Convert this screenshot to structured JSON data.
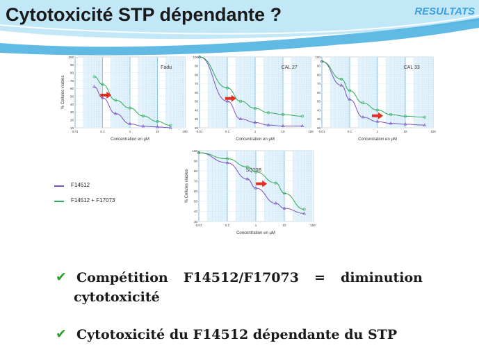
{
  "header": {
    "title": "Cytotoxicité STP dépendante ?",
    "section": "RESULTATS",
    "colors": {
      "band1": "#7fd0ef",
      "band2": "#3aa9dc",
      "section_text": "#3aa0e0"
    }
  },
  "legend": {
    "items": [
      {
        "label": "F14512",
        "color": "#7a4fc0"
      },
      {
        "label": "F14512 + F17073",
        "color": "#2faa55"
      }
    ]
  },
  "charts": [
    {
      "label": "Fadu",
      "ylabel": "% Cellules viables",
      "xlabel": "Concentration en µM",
      "xticks": [
        "0.01",
        "0.1",
        "1",
        "10",
        "100"
      ],
      "yticks": [
        "10",
        "20",
        "30",
        "40",
        "50",
        "60",
        "70",
        "80",
        "90",
        "100"
      ]
    },
    {
      "label": "CAL 27",
      "ylabel": "",
      "xlabel": "Concentration en µM",
      "xticks": [
        "0.01",
        "0.1",
        "1",
        "10",
        "100"
      ],
      "yticks": [
        "20",
        "30",
        "40",
        "50",
        "60",
        "70",
        "80",
        "90",
        "100"
      ]
    },
    {
      "label": "CAL 33",
      "ylabel": "",
      "xlabel": "Concentration en µM",
      "xticks": [
        "0.01",
        "0.1",
        "1",
        "10",
        "100"
      ],
      "yticks": [
        "20",
        "30",
        "40",
        "50",
        "60",
        "70",
        "80",
        "90",
        "100"
      ]
    },
    {
      "label": "SQ20B",
      "ylabel": "% Cellules viables",
      "xlabel": "Concentration en µM",
      "xticks": [
        "0.01",
        "0.1",
        "1",
        "10",
        "100"
      ],
      "yticks": [
        "30",
        "40",
        "50",
        "60",
        "70",
        "80",
        "90",
        "100"
      ]
    }
  ],
  "bullets": [
    {
      "check": "✔",
      "line1": "Compétition F14512/F17073 = diminution",
      "line2": "cytotoxicité"
    },
    {
      "check": "✔",
      "text": "Cytotoxicité du F14512 dépendante du STP"
    }
  ],
  "chart_data": [
    {
      "type": "line",
      "title": "Fadu",
      "xlabel": "Concentration en µM",
      "ylabel": "% Cellules viables",
      "xscale": "log",
      "xlim": [
        0.01,
        100
      ],
      "ylim": [
        10,
        100
      ],
      "grid": true,
      "series": [
        {
          "name": "F14512",
          "color": "#7a4fc0",
          "x": [
            0.05,
            0.1,
            0.3,
            1,
            3,
            10,
            30
          ],
          "y": [
            62,
            48,
            28,
            15,
            12,
            11,
            10
          ]
        },
        {
          "name": "F14512 + F17073",
          "color": "#2faa55",
          "x": [
            0.05,
            0.1,
            0.3,
            1,
            3,
            10,
            30
          ],
          "y": [
            75,
            65,
            45,
            35,
            25,
            18,
            13
          ]
        }
      ]
    },
    {
      "type": "line",
      "title": "CAL 27",
      "xlabel": "Concentration en µM",
      "ylabel": "",
      "xscale": "log",
      "xlim": [
        0.01,
        100
      ],
      "ylim": [
        20,
        100
      ],
      "grid": true,
      "series": [
        {
          "name": "F14512",
          "color": "#7a4fc0",
          "x": [
            0.01,
            0.1,
            0.3,
            1,
            3,
            10,
            50
          ],
          "y": [
            100,
            50,
            30,
            26,
            23,
            22,
            22
          ]
        },
        {
          "name": "F14512 + F17073",
          "color": "#2faa55",
          "x": [
            0.01,
            0.1,
            0.3,
            1,
            3,
            10,
            50
          ],
          "y": [
            100,
            65,
            50,
            42,
            37,
            35,
            33
          ]
        }
      ]
    },
    {
      "type": "line",
      "title": "CAL 33",
      "xlabel": "Concentration en µM",
      "ylabel": "",
      "xscale": "log",
      "xlim": [
        0.01,
        100
      ],
      "ylim": [
        20,
        100
      ],
      "grid": true,
      "series": [
        {
          "name": "F14512",
          "color": "#7a4fc0",
          "x": [
            0.01,
            0.05,
            0.1,
            0.3,
            1,
            3,
            10,
            50
          ],
          "y": [
            95,
            68,
            52,
            32,
            27,
            25,
            24,
            23
          ]
        },
        {
          "name": "F14512 + F17073",
          "color": "#2faa55",
          "x": [
            0.01,
            0.05,
            0.1,
            0.3,
            1,
            3,
            10,
            50
          ],
          "y": [
            95,
            75,
            62,
            48,
            40,
            35,
            33,
            32
          ]
        }
      ]
    },
    {
      "type": "line",
      "title": "SQ20B",
      "xlabel": "Concentration en µM",
      "ylabel": "% Cellules viables",
      "xscale": "log",
      "xlim": [
        0.01,
        100
      ],
      "ylim": [
        30,
        100
      ],
      "grid": true,
      "series": [
        {
          "name": "F14512",
          "color": "#7a4fc0",
          "x": [
            0.01,
            0.1,
            0.5,
            1,
            5,
            10,
            50
          ],
          "y": [
            98,
            88,
            72,
            63,
            48,
            43,
            38
          ]
        },
        {
          "name": "F14512 + F17073",
          "color": "#2faa55",
          "x": [
            0.01,
            0.1,
            0.5,
            1,
            5,
            10,
            50
          ],
          "y": [
            98,
            92,
            84,
            79,
            68,
            58,
            42
          ]
        }
      ]
    }
  ]
}
